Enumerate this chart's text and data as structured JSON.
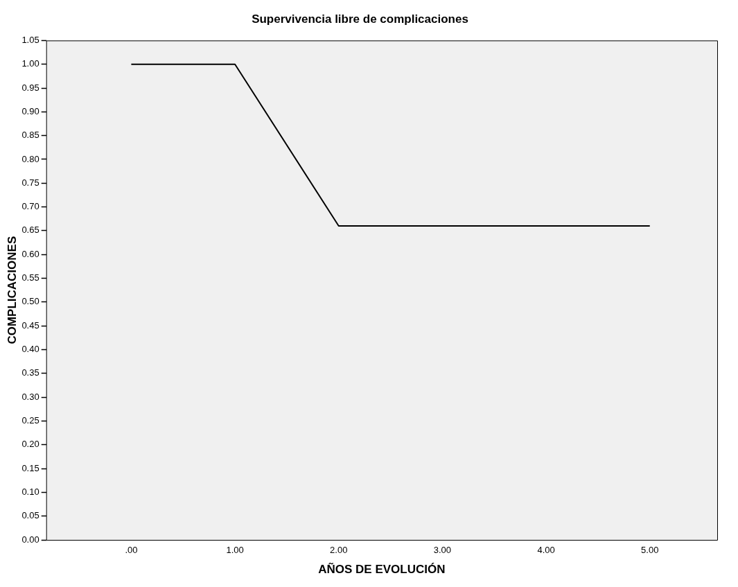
{
  "chart_data": {
    "type": "line",
    "title": "Supervivencia libre de complicaciones",
    "xlabel": "AÑOS DE EVOLUCIÓN",
    "ylabel": "COMPLICACIONES",
    "x": [
      0,
      1,
      2,
      5
    ],
    "series": [
      {
        "color": "#000000",
        "values": [
          1,
          1,
          0.66,
          0.66
        ]
      }
    ],
    "xlim": [
      -0.82,
      5.65
    ],
    "xticks": [
      {
        "value": 0,
        "label": ".00"
      },
      {
        "value": 1,
        "label": "1.00"
      },
      {
        "value": 2,
        "label": "2.00"
      },
      {
        "value": 3,
        "label": "3.00"
      },
      {
        "value": 4,
        "label": "4.00"
      },
      {
        "value": 5,
        "label": "5.00"
      }
    ],
    "ylim": [
      0,
      1.05
    ],
    "yticks": [
      {
        "value": 0,
        "label": "0.00"
      },
      {
        "value": 0.05,
        "label": "0.05"
      },
      {
        "value": 0.1,
        "label": "0.10"
      },
      {
        "value": 0.15,
        "label": "0.15"
      },
      {
        "value": 0.2,
        "label": "0.20"
      },
      {
        "value": 0.25,
        "label": "0.25"
      },
      {
        "value": 0.3,
        "label": "0.30"
      },
      {
        "value": 0.35,
        "label": "0.35"
      },
      {
        "value": 0.4,
        "label": "0.40"
      },
      {
        "value": 0.45,
        "label": "0.45"
      },
      {
        "value": 0.5,
        "label": "0.50"
      },
      {
        "value": 0.55,
        "label": "0.55"
      },
      {
        "value": 0.6,
        "label": "0.60"
      },
      {
        "value": 0.65,
        "label": "0.65"
      },
      {
        "value": 0.7,
        "label": "0.70"
      },
      {
        "value": 0.75,
        "label": "0.75"
      },
      {
        "value": 0.8,
        "label": "0.80"
      },
      {
        "value": 0.85,
        "label": "0.85"
      },
      {
        "value": 0.9,
        "label": "0.90"
      },
      {
        "value": 0.95,
        "label": "0.95"
      },
      {
        "value": 1,
        "label": "1.00"
      },
      {
        "value": 1.05,
        "label": "1.05"
      }
    ],
    "grid": false,
    "legend": false,
    "marker": "none",
    "line_style": "solid"
  }
}
